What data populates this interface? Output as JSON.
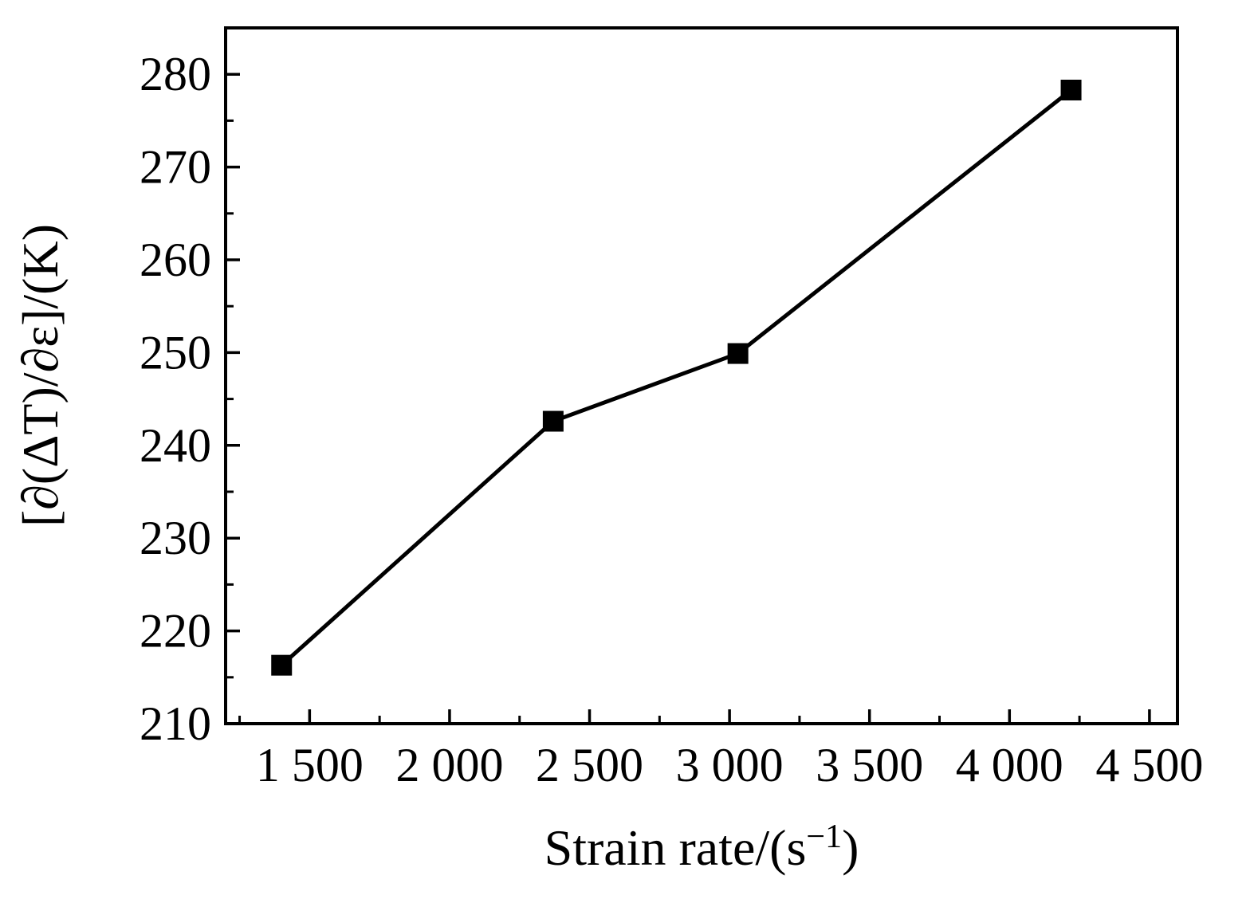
{
  "figure": {
    "background": "#ffffff",
    "foreground": "#000000"
  },
  "chart_data": {
    "type": "line",
    "title": "",
    "xlabel": "Strain rate/(s⁻¹)",
    "xlabel_prefix": "Strain rate/(s",
    "xlabel_superscript": "−1",
    "xlabel_suffix": ")",
    "ylabel": "[∂(ΔT)/∂ε]/(K)",
    "series": [
      {
        "name": "strain-rate-vs-dT-deps",
        "x": [
          1400,
          2370,
          3030,
          4220
        ],
        "y": [
          216.3,
          242.6,
          249.9,
          278.3
        ],
        "marker": "filled-square",
        "line_color": "#000000",
        "marker_color": "#000000"
      }
    ],
    "xlim": [
      1200,
      4600
    ],
    "ylim": [
      210,
      285
    ],
    "xticks": [
      {
        "value": 1500,
        "label": "1 500"
      },
      {
        "value": 2000,
        "label": "2 000"
      },
      {
        "value": 2500,
        "label": "2 500"
      },
      {
        "value": 3000,
        "label": "3 000"
      },
      {
        "value": 3500,
        "label": "3 500"
      },
      {
        "value": 4000,
        "label": "4 000"
      },
      {
        "value": 4500,
        "label": "4 500"
      }
    ],
    "yticks": [
      {
        "value": 210,
        "label": "210"
      },
      {
        "value": 220,
        "label": "220"
      },
      {
        "value": 230,
        "label": "230"
      },
      {
        "value": 240,
        "label": "240"
      },
      {
        "value": 250,
        "label": "250"
      },
      {
        "value": 260,
        "label": "260"
      },
      {
        "value": 270,
        "label": "270"
      },
      {
        "value": 280,
        "label": "280"
      }
    ],
    "x_minor_step": 250,
    "y_minor_step": 5,
    "grid": false,
    "legend": "none"
  }
}
